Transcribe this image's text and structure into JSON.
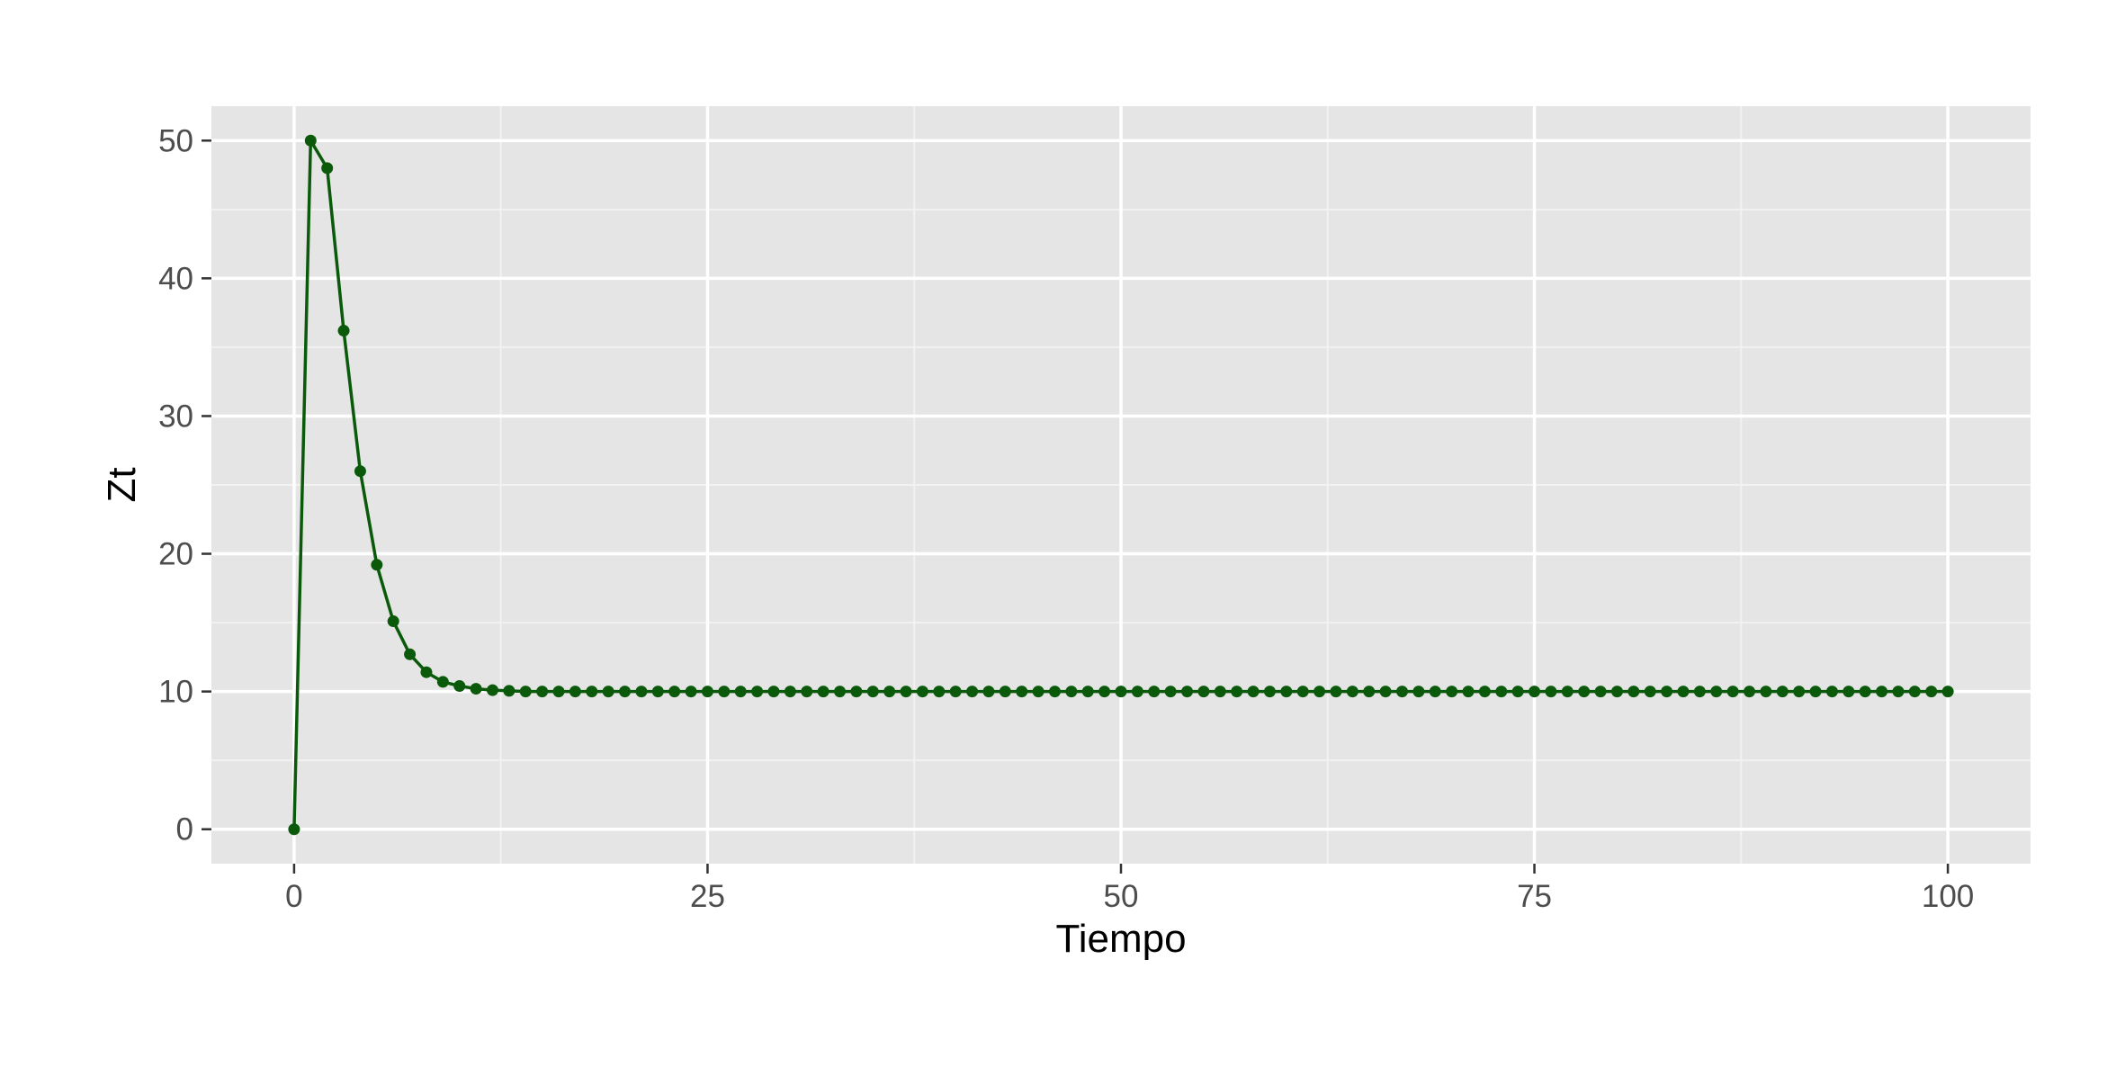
{
  "chart_data": {
    "type": "line",
    "title": "",
    "xlabel": "Tiempo",
    "ylabel": "Zt",
    "xlim": [
      -5,
      105
    ],
    "ylim": [
      -2.5,
      52.5
    ],
    "x_ticks": [
      0,
      25,
      50,
      75,
      100
    ],
    "x_tick_labels": [
      "0",
      "25",
      "50",
      "75",
      "100"
    ],
    "y_ticks": [
      0,
      10,
      20,
      30,
      40,
      50
    ],
    "y_tick_labels": [
      "0",
      "10",
      "20",
      "30",
      "40",
      "50"
    ],
    "x_minor_breaks": [
      12.5,
      37.5,
      62.5,
      87.5
    ],
    "y_minor_breaks": [
      5,
      15,
      25,
      35,
      45
    ],
    "grid": true,
    "legend": "none",
    "colors": {
      "series": "#0b5a0b",
      "panel_background": "#e5e5e5",
      "grid_major": "#ffffff",
      "grid_minor": "#f2f2f2"
    },
    "series": [
      {
        "x": [
          0,
          1,
          2,
          3,
          4,
          5,
          6,
          7,
          8,
          9,
          10,
          11,
          12,
          13,
          14,
          15,
          16,
          17,
          18,
          19,
          20,
          21,
          22,
          23,
          24,
          25,
          26,
          27,
          28,
          29,
          30,
          31,
          32,
          33,
          34,
          35,
          36,
          37,
          38,
          39,
          40,
          41,
          42,
          43,
          44,
          45,
          46,
          47,
          48,
          49,
          50,
          51,
          52,
          53,
          54,
          55,
          56,
          57,
          58,
          59,
          60,
          61,
          62,
          63,
          64,
          65,
          66,
          67,
          68,
          69,
          70,
          71,
          72,
          73,
          74,
          75,
          76,
          77,
          78,
          79,
          80,
          81,
          82,
          83,
          84,
          85,
          86,
          87,
          88,
          89,
          90,
          91,
          92,
          93,
          94,
          95,
          96,
          97,
          98,
          99,
          100
        ],
        "y": [
          0,
          50,
          48,
          36.2,
          26,
          19.2,
          15.1,
          12.7,
          11.4,
          10.7,
          10.4,
          10.2,
          10.1,
          10.05,
          10,
          10,
          10,
          10,
          10,
          10,
          10,
          10,
          10,
          10,
          10,
          10,
          10,
          10,
          10,
          10,
          10,
          10,
          10,
          10,
          10,
          10,
          10,
          10,
          10,
          10,
          10,
          10,
          10,
          10,
          10,
          10,
          10,
          10,
          10,
          10,
          10,
          10,
          10,
          10,
          10,
          10,
          10,
          10,
          10,
          10,
          10,
          10,
          10,
          10,
          10,
          10,
          10,
          10,
          10,
          10,
          10,
          10,
          10,
          10,
          10,
          10,
          10,
          10,
          10,
          10,
          10,
          10,
          10,
          10,
          10,
          10,
          10,
          10,
          10,
          10,
          10,
          10,
          10,
          10,
          10,
          10,
          10,
          10,
          10,
          10,
          10
        ]
      }
    ]
  }
}
